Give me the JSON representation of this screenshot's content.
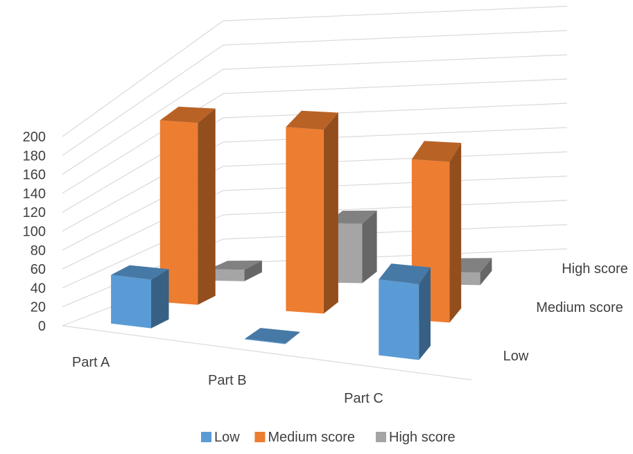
{
  "chart_data": {
    "type": "bar",
    "subtype": "3d-column",
    "title": "",
    "xlabel": "",
    "ylabel": "",
    "categories": [
      "Part A",
      "Part B",
      "Part C"
    ],
    "ylim": [
      0,
      200
    ],
    "yticks": [
      0,
      20,
      40,
      60,
      80,
      100,
      120,
      140,
      160,
      180,
      200
    ],
    "grid": true,
    "legend_position": "bottom",
    "series": [
      {
        "name": "Low",
        "values": [
          50,
          0,
          78
        ],
        "color": "#5B9BD5"
      },
      {
        "name": "Medium score",
        "values": [
          172,
          174,
          152
        ],
        "color": "#ED7D31"
      },
      {
        "name": "High score",
        "values": [
          10,
          52,
          11
        ],
        "color": "#A5A5A5"
      }
    ]
  }
}
